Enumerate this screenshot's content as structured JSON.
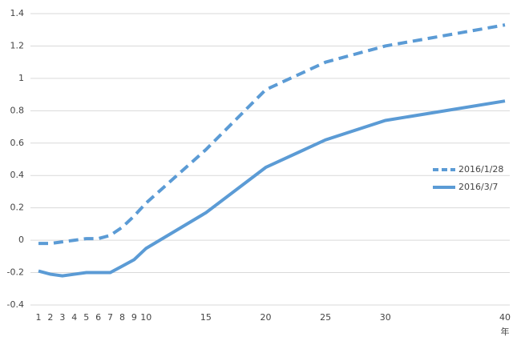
{
  "chart_data": {
    "type": "line",
    "x": [
      1,
      2,
      3,
      4,
      5,
      6,
      7,
      8,
      9,
      10,
      15,
      20,
      25,
      30,
      40
    ],
    "series": [
      {
        "name": "2016/1/28",
        "color": "#5b9bd5",
        "dash": true,
        "values": [
          -0.02,
          -0.02,
          -0.01,
          0.0,
          0.01,
          0.01,
          0.03,
          0.08,
          0.15,
          0.23,
          0.56,
          0.93,
          1.1,
          1.2,
          1.33
        ]
      },
      {
        "name": "2016/3/7",
        "color": "#5b9bd5",
        "dash": false,
        "values": [
          -0.19,
          -0.21,
          -0.22,
          -0.21,
          -0.2,
          -0.2,
          -0.2,
          -0.16,
          -0.12,
          -0.05,
          0.17,
          0.45,
          0.62,
          0.74,
          0.86
        ]
      }
    ],
    "x_label": "年",
    "xlim": [
      1,
      40
    ],
    "xticks": [
      1,
      2,
      3,
      4,
      5,
      6,
      7,
      8,
      9,
      10,
      15,
      20,
      25,
      30,
      40
    ],
    "ylim": [
      -0.4,
      1.4
    ],
    "yticks": [
      -0.4,
      -0.2,
      0,
      0.2,
      0.4,
      0.6,
      0.8,
      1,
      1.2,
      1.4
    ],
    "grid": true,
    "legend": "right"
  }
}
